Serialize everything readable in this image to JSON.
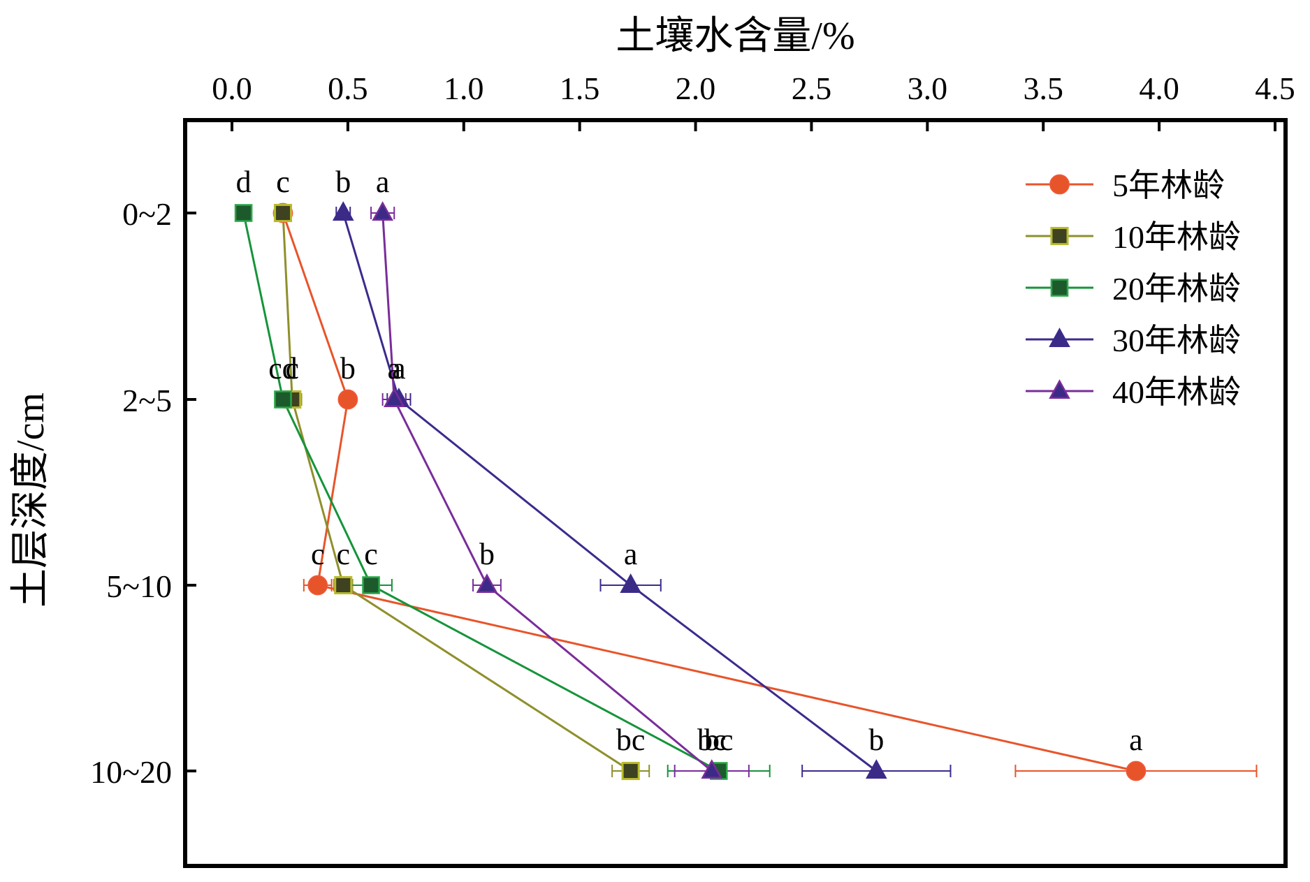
{
  "chart_data": {
    "type": "line",
    "orientation": "horizontal-value",
    "xlabel": "土壤水含量/%",
    "ylabel": "土层深度/cm",
    "xlim": [
      0,
      4.5
    ],
    "x_ticks": [
      "0.0",
      "0.5",
      "1.0",
      "1.5",
      "2.0",
      "2.5",
      "3.0",
      "3.5",
      "4.0",
      "4.5"
    ],
    "x_axis_position": "top",
    "categories": [
      "0~2",
      "2~5",
      "5~10",
      "10~20"
    ],
    "grid": false,
    "legend_position": "top-right",
    "series": [
      {
        "name": "5年林龄",
        "color": "#e8542a",
        "marker": "circle",
        "values": [
          0.22,
          0.5,
          0.37,
          3.9
        ],
        "errors": [
          0.03,
          0.03,
          0.06,
          0.52
        ],
        "labels": [
          "c",
          "b",
          "c",
          "a"
        ]
      },
      {
        "name": "10年林龄",
        "color": "#8f8f2c",
        "marker": "square-dark",
        "values": [
          0.22,
          0.26,
          0.48,
          1.72
        ],
        "errors": [
          0.03,
          0.04,
          0.04,
          0.08
        ],
        "labels": [
          "c",
          "c",
          "c",
          "bc"
        ]
      },
      {
        "name": "20年林龄",
        "color": "#15943a",
        "marker": "square",
        "values": [
          0.05,
          0.22,
          0.6,
          2.1
        ],
        "errors": [
          0.02,
          0.03,
          0.09,
          0.22
        ],
        "labels": [
          "d",
          "cd",
          "c",
          "bc"
        ]
      },
      {
        "name": "30年林龄",
        "color": "#3d2a8c",
        "marker": "triangle",
        "values": [
          0.48,
          0.72,
          1.72,
          2.78
        ],
        "errors": [
          0.03,
          0.05,
          0.13,
          0.32
        ],
        "labels": [
          "b",
          "a",
          "a",
          "b"
        ]
      },
      {
        "name": "40年林龄",
        "color": "#7a2c9a",
        "marker": "triangle",
        "values": [
          0.65,
          0.7,
          1.1,
          2.07
        ],
        "errors": [
          0.05,
          0.05,
          0.06,
          0.16
        ],
        "labels": [
          "a",
          "a",
          "b",
          "bc"
        ]
      }
    ]
  }
}
